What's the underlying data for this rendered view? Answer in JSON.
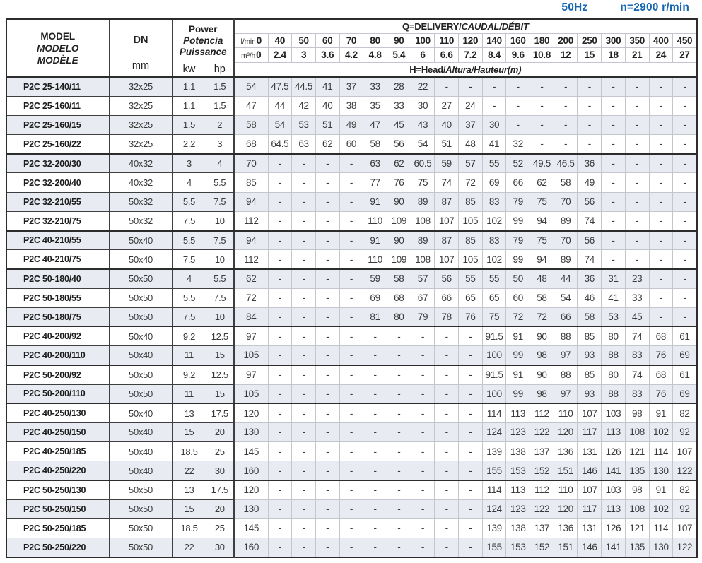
{
  "title_bar": {
    "frequency": "50Hz",
    "speed": "n=2900 r/min"
  },
  "colors": {
    "accent_blue": "#1666b0",
    "row_shade": "#e9ebf3",
    "grid_light": "#c3c6cd",
    "grid_dark": "#3f3f3f",
    "frame_dark": "#2c2c2c"
  },
  "table": {
    "model_header_lines": [
      "MODEL",
      "MODELO",
      "MODÈLE"
    ],
    "dn_label": "DN",
    "dn_unit": "mm",
    "power_header_lines": [
      "Power",
      "Potencia",
      "Puissance"
    ],
    "kw_label": "kw",
    "hp_label": "hp",
    "q_title_plain": "Q=DELIVERY/",
    "q_title_italic": "CAUDAL/DÉBIT",
    "lmin_label": "l/min",
    "m3h_label": "m³/h",
    "lmin_values": [
      "0",
      "40",
      "50",
      "60",
      "70",
      "80",
      "90",
      "100",
      "110",
      "120",
      "140",
      "160",
      "180",
      "200",
      "250",
      "300",
      "350",
      "400",
      "450"
    ],
    "m3h_values": [
      "0",
      "2.4",
      "3",
      "3.6",
      "4.2",
      "4.8",
      "5.4",
      "6",
      "6.6",
      "7.2",
      "8.4",
      "9.6",
      "10.8",
      "12",
      "15",
      "18",
      "21",
      "24",
      "27"
    ],
    "head_title_plain": "H=Head/",
    "head_title_italic": "Altura/Hauteur(m)",
    "rows": [
      {
        "model": "P2C 25-140/11",
        "dn": "32x25",
        "kw": "1.1",
        "hp": "1.5",
        "group_end": false,
        "heads": [
          "54",
          "47.5",
          "44.5",
          "41",
          "37",
          "33",
          "28",
          "22",
          "-",
          "-",
          "-",
          "-",
          "-",
          "-",
          "-",
          "-",
          "-",
          "-",
          "-"
        ]
      },
      {
        "model": "P2C 25-160/11",
        "dn": "32x25",
        "kw": "1.1",
        "hp": "1.5",
        "group_end": false,
        "heads": [
          "47",
          "44",
          "42",
          "40",
          "38",
          "35",
          "33",
          "30",
          "27",
          "24",
          "-",
          "-",
          "-",
          "-",
          "-",
          "-",
          "-",
          "-",
          "-"
        ]
      },
      {
        "model": "P2C 25-160/15",
        "dn": "32x25",
        "kw": "1.5",
        "hp": "2",
        "group_end": false,
        "heads": [
          "58",
          "54",
          "53",
          "51",
          "49",
          "47",
          "45",
          "43",
          "40",
          "37",
          "30",
          "-",
          "-",
          "-",
          "-",
          "-",
          "-",
          "-",
          "-"
        ]
      },
      {
        "model": "P2C 25-160/22",
        "dn": "32x25",
        "kw": "2.2",
        "hp": "3",
        "group_end": true,
        "heads": [
          "68",
          "64.5",
          "63",
          "62",
          "60",
          "58",
          "56",
          "54",
          "51",
          "48",
          "41",
          "32",
          "-",
          "-",
          "-",
          "-",
          "-",
          "-",
          "-"
        ]
      },
      {
        "model": "P2C 32-200/30",
        "dn": "40x32",
        "kw": "3",
        "hp": "4",
        "group_end": false,
        "heads": [
          "70",
          "-",
          "-",
          "-",
          "-",
          "63",
          "62",
          "60.5",
          "59",
          "57",
          "55",
          "52",
          "49.5",
          "46.5",
          "36",
          "-",
          "-",
          "-",
          "-"
        ]
      },
      {
        "model": "P2C 32-200/40",
        "dn": "40x32",
        "kw": "4",
        "hp": "5.5",
        "group_end": false,
        "heads": [
          "85",
          "-",
          "-",
          "-",
          "-",
          "77",
          "76",
          "75",
          "74",
          "72",
          "69",
          "66",
          "62",
          "58",
          "49",
          "-",
          "-",
          "-",
          "-"
        ]
      },
      {
        "model": "P2C 32-210/55",
        "dn": "50x32",
        "kw": "5.5",
        "hp": "7.5",
        "group_end": false,
        "heads": [
          "94",
          "-",
          "-",
          "-",
          "-",
          "91",
          "90",
          "89",
          "87",
          "85",
          "83",
          "79",
          "75",
          "70",
          "56",
          "-",
          "-",
          "-",
          "-"
        ]
      },
      {
        "model": "P2C 32-210/75",
        "dn": "50x32",
        "kw": "7.5",
        "hp": "10",
        "group_end": true,
        "heads": [
          "112",
          "-",
          "-",
          "-",
          "-",
          "110",
          "109",
          "108",
          "107",
          "105",
          "102",
          "99",
          "94",
          "89",
          "74",
          "-",
          "-",
          "-",
          "-"
        ]
      },
      {
        "model": "P2C 40-210/55",
        "dn": "50x40",
        "kw": "5.5",
        "hp": "7.5",
        "group_end": false,
        "heads": [
          "94",
          "-",
          "-",
          "-",
          "-",
          "91",
          "90",
          "89",
          "87",
          "85",
          "83",
          "79",
          "75",
          "70",
          "56",
          "-",
          "-",
          "-",
          "-"
        ]
      },
      {
        "model": "P2C 40-210/75",
        "dn": "50x40",
        "kw": "7.5",
        "hp": "10",
        "group_end": true,
        "heads": [
          "112",
          "-",
          "-",
          "-",
          "-",
          "110",
          "109",
          "108",
          "107",
          "105",
          "102",
          "99",
          "94",
          "89",
          "74",
          "-",
          "-",
          "-",
          "-"
        ]
      },
      {
        "model": "P2C 50-180/40",
        "dn": "50x50",
        "kw": "4",
        "hp": "5.5",
        "group_end": false,
        "heads": [
          "62",
          "-",
          "-",
          "-",
          "-",
          "59",
          "58",
          "57",
          "56",
          "55",
          "55",
          "50",
          "48",
          "44",
          "36",
          "31",
          "23",
          "-",
          "-"
        ]
      },
      {
        "model": "P2C 50-180/55",
        "dn": "50x50",
        "kw": "5.5",
        "hp": "7.5",
        "group_end": false,
        "heads": [
          "72",
          "-",
          "-",
          "-",
          "-",
          "69",
          "68",
          "67",
          "66",
          "65",
          "65",
          "60",
          "58",
          "54",
          "46",
          "41",
          "33",
          "-",
          "-"
        ]
      },
      {
        "model": "P2C 50-180/75",
        "dn": "50x50",
        "kw": "7.5",
        "hp": "10",
        "group_end": true,
        "heads": [
          "84",
          "-",
          "-",
          "-",
          "-",
          "81",
          "80",
          "79",
          "78",
          "76",
          "75",
          "72",
          "72",
          "66",
          "58",
          "53",
          "45",
          "-",
          "-"
        ]
      },
      {
        "model": "P2C 40-200/92",
        "dn": "50x40",
        "kw": "9.2",
        "hp": "12.5",
        "group_end": false,
        "heads": [
          "97",
          "-",
          "-",
          "-",
          "-",
          "-",
          "-",
          "-",
          "-",
          "-",
          "91.5",
          "91",
          "90",
          "88",
          "85",
          "80",
          "74",
          "68",
          "61"
        ]
      },
      {
        "model": "P2C 40-200/110",
        "dn": "50x40",
        "kw": "11",
        "hp": "15",
        "group_end": true,
        "heads": [
          "105",
          "-",
          "-",
          "-",
          "-",
          "-",
          "-",
          "-",
          "-",
          "-",
          "100",
          "99",
          "98",
          "97",
          "93",
          "88",
          "83",
          "76",
          "69"
        ]
      },
      {
        "model": "P2C 50-200/92",
        "dn": "50x50",
        "kw": "9.2",
        "hp": "12.5",
        "group_end": false,
        "heads": [
          "97",
          "-",
          "-",
          "-",
          "-",
          "-",
          "-",
          "-",
          "-",
          "-",
          "91.5",
          "91",
          "90",
          "88",
          "85",
          "80",
          "74",
          "68",
          "61"
        ]
      },
      {
        "model": "P2C 50-200/110",
        "dn": "50x50",
        "kw": "11",
        "hp": "15",
        "group_end": true,
        "heads": [
          "105",
          "-",
          "-",
          "-",
          "-",
          "-",
          "-",
          "-",
          "-",
          "-",
          "100",
          "99",
          "98",
          "97",
          "93",
          "88",
          "83",
          "76",
          "69"
        ]
      },
      {
        "model": "P2C 40-250/130",
        "dn": "50x40",
        "kw": "13",
        "hp": "17.5",
        "group_end": false,
        "heads": [
          "120",
          "-",
          "-",
          "-",
          "-",
          "-",
          "-",
          "-",
          "-",
          "-",
          "114",
          "113",
          "112",
          "110",
          "107",
          "103",
          "98",
          "91",
          "82"
        ]
      },
      {
        "model": "P2C 40-250/150",
        "dn": "50x40",
        "kw": "15",
        "hp": "20",
        "group_end": false,
        "heads": [
          "130",
          "-",
          "-",
          "-",
          "-",
          "-",
          "-",
          "-",
          "-",
          "-",
          "124",
          "123",
          "122",
          "120",
          "117",
          "113",
          "108",
          "102",
          "92"
        ]
      },
      {
        "model": "P2C 40-250/185",
        "dn": "50x40",
        "kw": "18.5",
        "hp": "25",
        "group_end": false,
        "heads": [
          "145",
          "-",
          "-",
          "-",
          "-",
          "-",
          "-",
          "-",
          "-",
          "-",
          "139",
          "138",
          "137",
          "136",
          "131",
          "126",
          "121",
          "114",
          "107"
        ]
      },
      {
        "model": "P2C 40-250/220",
        "dn": "50x40",
        "kw": "22",
        "hp": "30",
        "group_end": true,
        "heads": [
          "160",
          "-",
          "-",
          "-",
          "-",
          "-",
          "-",
          "-",
          "-",
          "-",
          "155",
          "153",
          "152",
          "151",
          "146",
          "141",
          "135",
          "130",
          "122"
        ]
      },
      {
        "model": "P2C 50-250/130",
        "dn": "50x50",
        "kw": "13",
        "hp": "17.5",
        "group_end": false,
        "heads": [
          "120",
          "-",
          "-",
          "-",
          "-",
          "-",
          "-",
          "-",
          "-",
          "-",
          "114",
          "113",
          "112",
          "110",
          "107",
          "103",
          "98",
          "91",
          "82"
        ]
      },
      {
        "model": "P2C 50-250/150",
        "dn": "50x50",
        "kw": "15",
        "hp": "20",
        "group_end": false,
        "heads": [
          "130",
          "-",
          "-",
          "-",
          "-",
          "-",
          "-",
          "-",
          "-",
          "-",
          "124",
          "123",
          "122",
          "120",
          "117",
          "113",
          "108",
          "102",
          "92"
        ]
      },
      {
        "model": "P2C 50-250/185",
        "dn": "50x50",
        "kw": "18.5",
        "hp": "25",
        "group_end": false,
        "heads": [
          "145",
          "-",
          "-",
          "-",
          "-",
          "-",
          "-",
          "-",
          "-",
          "-",
          "139",
          "138",
          "137",
          "136",
          "131",
          "126",
          "121",
          "114",
          "107"
        ]
      },
      {
        "model": "P2C 50-250/220",
        "dn": "50x50",
        "kw": "22",
        "hp": "30",
        "group_end": false,
        "heads": [
          "160",
          "-",
          "-",
          "-",
          "-",
          "-",
          "-",
          "-",
          "-",
          "-",
          "155",
          "153",
          "152",
          "151",
          "146",
          "141",
          "135",
          "130",
          "122"
        ]
      }
    ]
  }
}
